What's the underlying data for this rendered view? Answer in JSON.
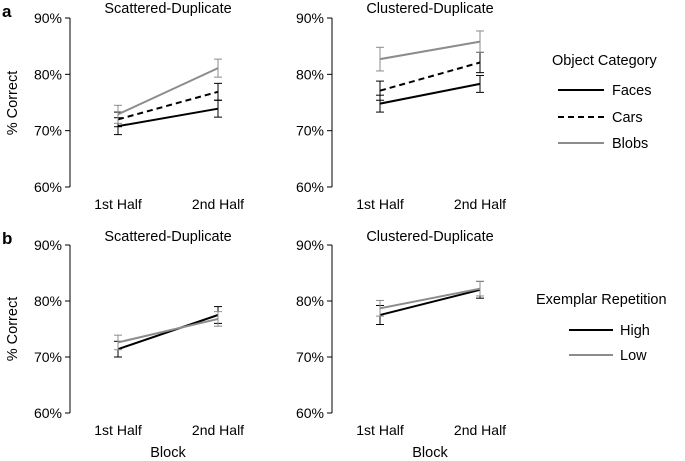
{
  "figure": {
    "row_labels": [
      "a",
      "b"
    ],
    "ylabel": "% Correct",
    "xlabel": "Block"
  },
  "legends": [
    {
      "title": "Object Category",
      "items": [
        {
          "label": "Faces",
          "color": "#000000",
          "dash": "solid"
        },
        {
          "label": "Cars",
          "color": "#000000",
          "dash": "dashed"
        },
        {
          "label": "Blobs",
          "color": "#8c8c8c",
          "dash": "solid"
        }
      ]
    },
    {
      "title": "Exemplar Repetition",
      "items": [
        {
          "label": "High",
          "color": "#000000",
          "dash": "solid"
        },
        {
          "label": "Low",
          "color": "#8c8c8c",
          "dash": "solid"
        }
      ]
    }
  ],
  "chart_data": [
    {
      "type": "line",
      "title": "Scattered-Duplicate",
      "categories": [
        "1st Half",
        "2nd Half"
      ],
      "ylim": [
        60,
        90
      ],
      "yticks": [
        "60%",
        "70%",
        "80%",
        "90%"
      ],
      "series": [
        {
          "name": "Faces",
          "values": [
            70.8,
            73.9
          ],
          "error": [
            1.5,
            1.5
          ],
          "color": "#000000",
          "dash": "solid"
        },
        {
          "name": "Cars",
          "values": [
            72.0,
            76.9
          ],
          "error": [
            1.3,
            1.5
          ],
          "color": "#000000",
          "dash": "dashed"
        },
        {
          "name": "Blobs",
          "values": [
            72.9,
            81.1
          ],
          "error": [
            1.6,
            1.6
          ],
          "color": "#8c8c8c",
          "dash": "solid"
        }
      ]
    },
    {
      "type": "line",
      "title": "Clustered-Duplicate",
      "categories": [
        "1st Half",
        "2nd Half"
      ],
      "ylim": [
        60,
        90
      ],
      "yticks": [
        "60%",
        "70%",
        "80%",
        "90%"
      ],
      "series": [
        {
          "name": "Faces",
          "values": [
            74.8,
            78.3
          ],
          "error": [
            1.5,
            1.5
          ],
          "color": "#000000",
          "dash": "solid"
        },
        {
          "name": "Cars",
          "values": [
            77.1,
            82.1
          ],
          "error": [
            1.7,
            1.8
          ],
          "color": "#000000",
          "dash": "dashed"
        },
        {
          "name": "Blobs",
          "values": [
            82.7,
            85.8
          ],
          "error": [
            2.1,
            1.9
          ],
          "color": "#8c8c8c",
          "dash": "solid"
        }
      ]
    },
    {
      "type": "line",
      "title": "Scattered-Duplicate",
      "categories": [
        "1st Half",
        "2nd Half"
      ],
      "ylim": [
        60,
        90
      ],
      "yticks": [
        "60%",
        "70%",
        "80%",
        "90%"
      ],
      "series": [
        {
          "name": "High",
          "values": [
            71.4,
            77.5
          ],
          "error": [
            1.4,
            1.5
          ],
          "color": "#000000",
          "dash": "solid"
        },
        {
          "name": "Low",
          "values": [
            72.6,
            76.8
          ],
          "error": [
            1.3,
            1.3
          ],
          "color": "#8c8c8c",
          "dash": "solid"
        }
      ]
    },
    {
      "type": "line",
      "title": "Clustered-Duplicate",
      "categories": [
        "1st Half",
        "2nd Half"
      ],
      "ylim": [
        60,
        90
      ],
      "yticks": [
        "60%",
        "70%",
        "80%",
        "90%"
      ],
      "series": [
        {
          "name": "High",
          "values": [
            77.5,
            82.0
          ],
          "error": [
            1.7,
            1.5
          ],
          "color": "#000000",
          "dash": "solid"
        },
        {
          "name": "Low",
          "values": [
            78.7,
            82.2
          ],
          "error": [
            1.4,
            1.3
          ],
          "color": "#8c8c8c",
          "dash": "solid"
        }
      ]
    }
  ]
}
